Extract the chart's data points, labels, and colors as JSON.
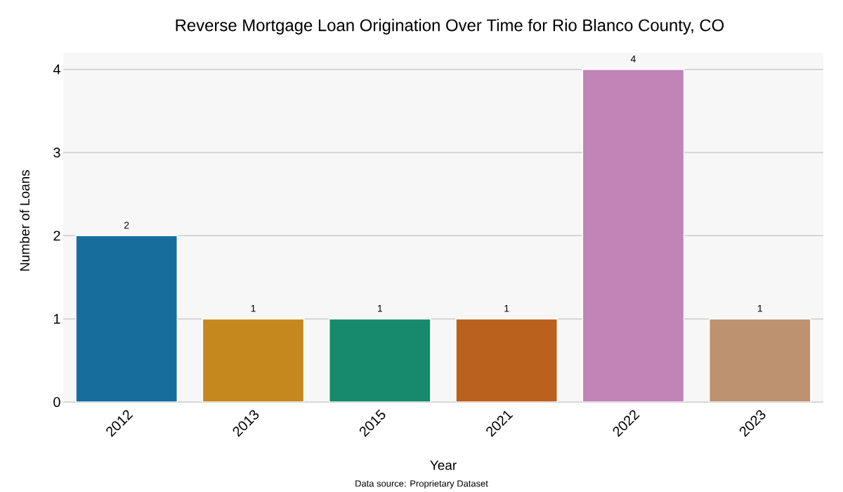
{
  "chart_data": {
    "type": "bar",
    "title": "Reverse Mortgage Loan Origination Over Time for Rio Blanco County, CO",
    "xlabel": "Year",
    "ylabel": "Number of Loans",
    "categories": [
      "2012",
      "2013",
      "2015",
      "2021",
      "2022",
      "2023"
    ],
    "values": [
      2,
      1,
      1,
      1,
      4,
      1
    ],
    "colors": [
      "#176d9c",
      "#c4881f",
      "#168a6a",
      "#b9611d",
      "#c283b7",
      "#bc9270"
    ],
    "ylim": [
      0,
      4.2
    ],
    "yticks": [
      0,
      1,
      2,
      3,
      4
    ],
    "grid": "y",
    "data_labels": true,
    "annotations": [
      "Data source: Proprietary Dataset"
    ]
  }
}
